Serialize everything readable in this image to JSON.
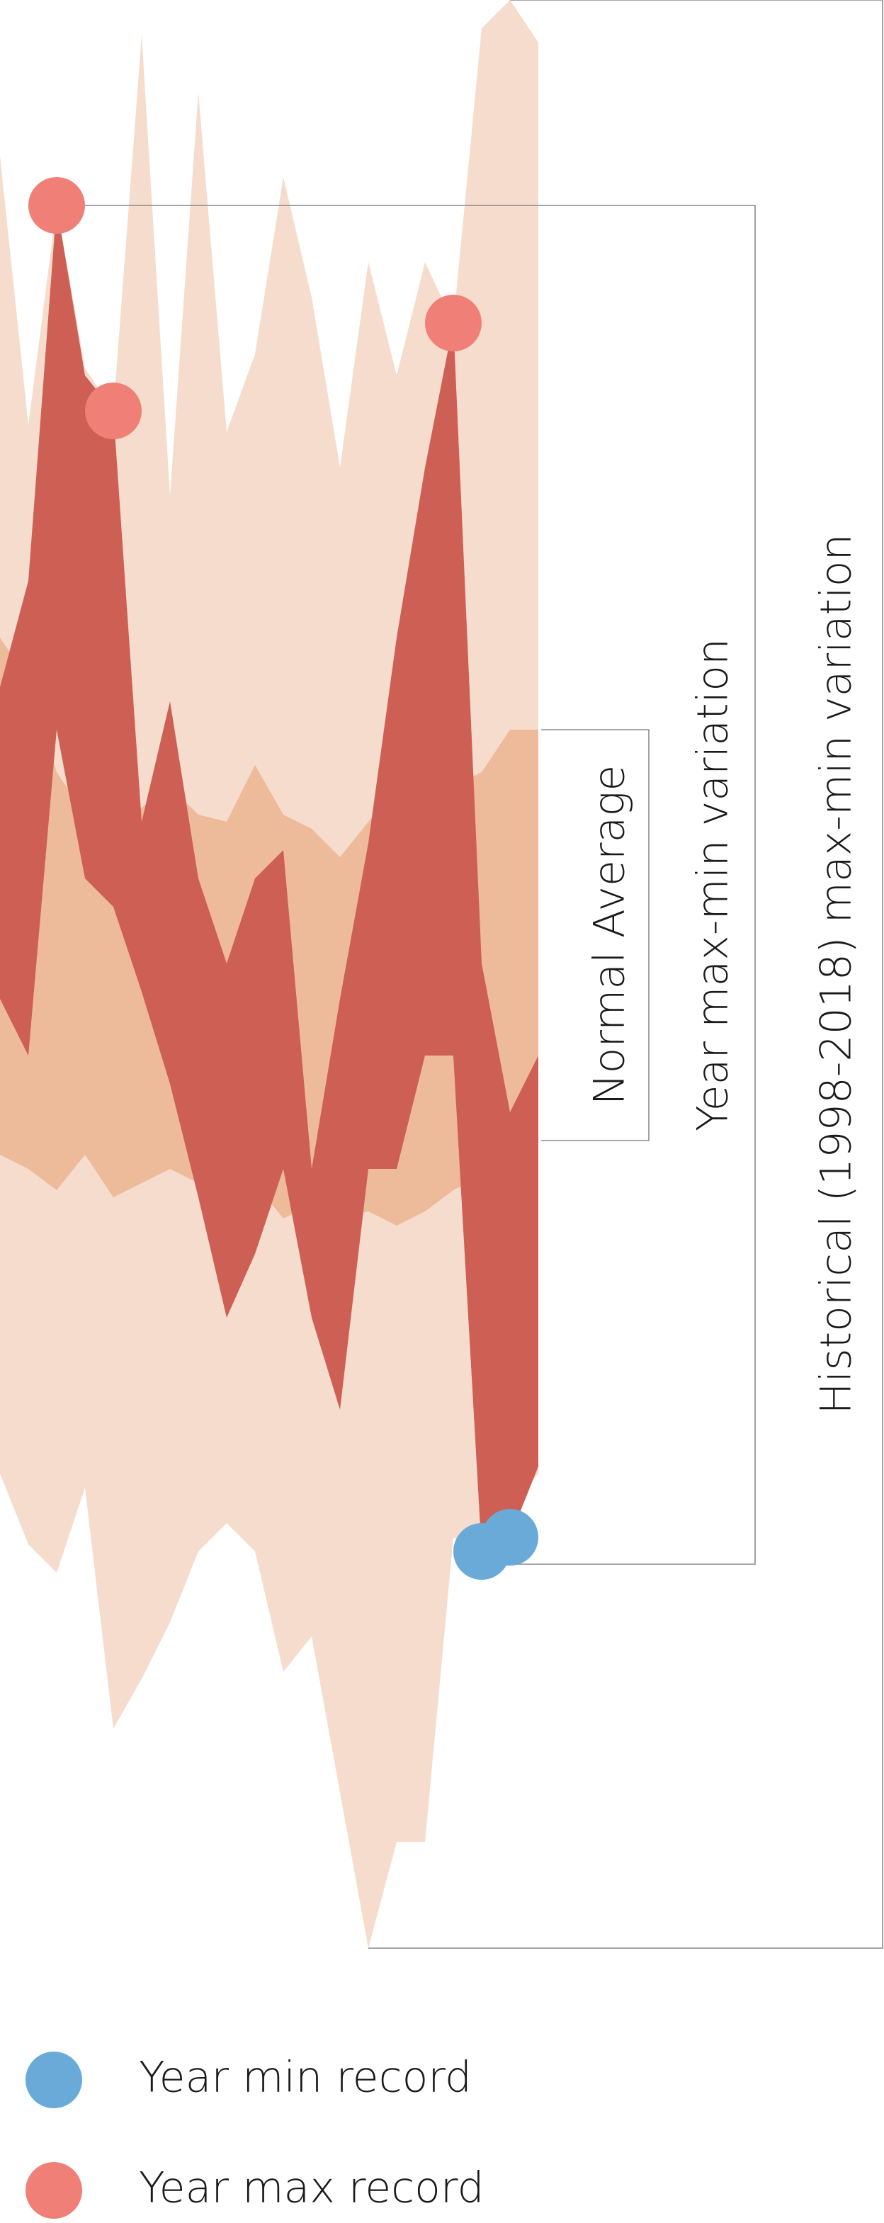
{
  "chart_data": {
    "type": "band",
    "categories": [
      null,
      null,
      null,
      null,
      null,
      null,
      null,
      null,
      null,
      null,
      null,
      null,
      null,
      null,
      null,
      null,
      null,
      null,
      null,
      null
    ],
    "ylim": [
      0,
      1375
    ],
    "series": [
      {
        "label": "Historical (1998-2018) max-min variation",
        "color": "#f6dccc",
        "max": [
          1265,
          1075,
          1230,
          1115,
          1085,
          1350,
          1025,
          1310,
          1070,
          1125,
          1250,
          1165,
          1045,
          1190,
          1110,
          1190,
          1147,
          1355,
          1375,
          1345
        ],
        "min": [
          335,
          285,
          265,
          325,
          155,
          190,
          230,
          280,
          300,
          280,
          195,
          220,
          110,
          0,
          75,
          75,
          290,
          280,
          310,
          335
        ]
      },
      {
        "label": "Normal Average",
        "color": "#edba9a",
        "max": [
          925,
          895,
          830,
          800,
          810,
          805,
          820,
          800,
          795,
          835,
          800,
          790,
          770,
          795,
          820,
          830,
          820,
          830,
          860,
          860
        ],
        "min": [
          560,
          550,
          535,
          560,
          530,
          540,
          550,
          540,
          550,
          540,
          515,
          525,
          515,
          520,
          510,
          520,
          535,
          545,
          575,
          585
        ]
      },
      {
        "label": "Year max-min variation",
        "color": "#cd5f55",
        "max": [
          890,
          965,
          1230,
          1110,
          1085,
          795,
          880,
          755,
          695,
          755,
          775,
          550,
          670,
          780,
          925,
          1045,
          1147,
          695,
          590,
          630
        ],
        "min": [
          670,
          630,
          860,
          755,
          735,
          675,
          610,
          530,
          445,
          490,
          550,
          445,
          380,
          550,
          550,
          630,
          630,
          280,
          290,
          340
        ]
      }
    ],
    "records": {
      "min": {
        "name": "Year min record",
        "color": "#6aaad8"
      },
      "max": {
        "name": "Year max record",
        "color": "#f08077"
      }
    }
  }
}
